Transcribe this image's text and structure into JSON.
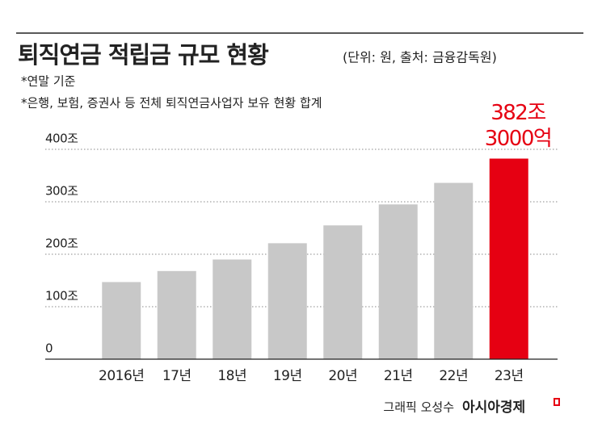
{
  "chart_data": {
    "type": "bar",
    "title": "퇴직연금 적립금 규모 현황",
    "subtitle": "(단위: 원, 출처: 금융감독원)",
    "notes": [
      "*연말 기준",
      "*은행, 보험, 증권사 등 전체 퇴직연금사업자 보유 현황 합계"
    ],
    "credit": "그래픽 오성수",
    "brand": "아시아경제",
    "categories": [
      "2016년",
      "17년",
      "18년",
      "19년",
      "20년",
      "21년",
      "22년",
      "23년"
    ],
    "values": [
      147,
      168,
      190,
      221,
      255,
      295,
      336,
      382.3
    ],
    "value_labels": [
      null,
      null,
      null,
      null,
      null,
      null,
      null,
      "382조 3000억"
    ],
    "colors": [
      "#c8c8c8",
      "#c8c8c8",
      "#c8c8c8",
      "#c8c8c8",
      "#c8c8c8",
      "#c8c8c8",
      "#c8c8c8",
      "#e60012"
    ],
    "ylim": [
      0,
      400
    ],
    "yticks": [
      0,
      {
        "value": 100,
        "label": "100조"
      },
      {
        "value": 200,
        "label": "200조"
      },
      {
        "value": 300,
        "label": "300조"
      },
      {
        "value": 400,
        "label": "400조"
      }
    ],
    "grid": true
  }
}
